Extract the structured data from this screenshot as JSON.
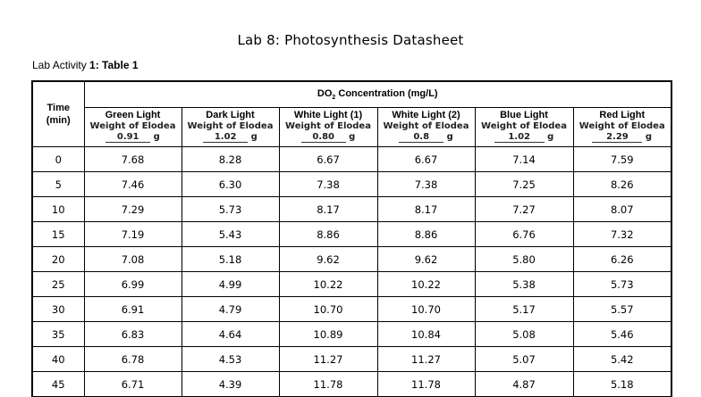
{
  "title": "Lab 8: Photosynthesis Datasheet",
  "subtitle": {
    "prefix": "Lab Activity ",
    "num1": "1",
    "mid": ": Table ",
    "num2": "1"
  },
  "table": {
    "time_label_1": "Time",
    "time_label_2": "(min)",
    "group_header_prefix": "DO",
    "group_header_sub": "2",
    "group_header_suffix": " Concentration (mg/L)",
    "weight_label": "Weight of Elodea",
    "weight_unit": "g",
    "columns": [
      {
        "name": "Green Light",
        "mass": "0.91"
      },
      {
        "name": "Dark Light",
        "mass": "1.02"
      },
      {
        "name": "White Light (1)",
        "mass": "0.80"
      },
      {
        "name": "White Light (2)",
        "mass": "0.8"
      },
      {
        "name": "Blue Light",
        "mass": "1.02"
      },
      {
        "name": "Red Light",
        "mass": "2.29"
      }
    ],
    "rows": [
      {
        "time": "0",
        "values": [
          "7.68",
          "8.28",
          "6.67",
          "6.67",
          "7.14",
          "7.59"
        ]
      },
      {
        "time": "5",
        "values": [
          "7.46",
          "6.30",
          "7.38",
          "7.38",
          "7.25",
          "8.26"
        ]
      },
      {
        "time": "10",
        "values": [
          "7.29",
          "5.73",
          "8.17",
          "8.17",
          "7.27",
          "8.07"
        ]
      },
      {
        "time": "15",
        "values": [
          "7.19",
          "5.43",
          "8.86",
          "8.86",
          "6.76",
          "7.32"
        ]
      },
      {
        "time": "20",
        "values": [
          "7.08",
          "5.18",
          "9.62",
          "9.62",
          "5.80",
          "6.26"
        ]
      },
      {
        "time": "25",
        "values": [
          "6.99",
          "4.99",
          "10.22",
          "10.22",
          "5.38",
          "5.73"
        ]
      },
      {
        "time": "30",
        "values": [
          "6.91",
          "4.79",
          "10.70",
          "10.70",
          "5.17",
          "5.57"
        ]
      },
      {
        "time": "35",
        "values": [
          "6.83",
          "4.64",
          "10.89",
          "10.84",
          "5.08",
          "5.46"
        ]
      },
      {
        "time": "40",
        "values": [
          "6.78",
          "4.53",
          "11.27",
          "11.27",
          "5.07",
          "5.42"
        ]
      },
      {
        "time": "45",
        "values": [
          "6.71",
          "4.39",
          "11.78",
          "11.78",
          "4.87",
          "5.18"
        ]
      }
    ]
  }
}
